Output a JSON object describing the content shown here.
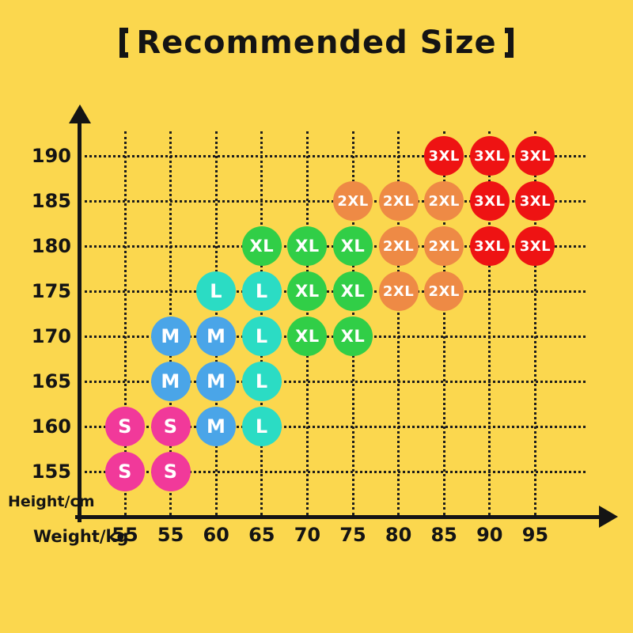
{
  "title_full": "【Recommended Size】",
  "title_text": "Recommended Size",
  "colors": {
    "background": "#FBD74E",
    "axis_and_text": "#141414",
    "grid": "#1C1C1C",
    "bubble_label": "#FFFFFF"
  },
  "chart_data": {
    "type": "scatter",
    "title": "【Recommended Size】",
    "xlabel": "Weight/kg",
    "ylabel": "Height/cm",
    "x_tick_labels": [
      "55",
      "55",
      "60",
      "65",
      "70",
      "75",
      "80",
      "85",
      "90",
      "95"
    ],
    "y_ticks": [
      155,
      160,
      165,
      170,
      175,
      180,
      185,
      190
    ],
    "grid": true,
    "legend": "none",
    "series": [
      {
        "name": "S",
        "color": "#F1399A",
        "points_note": "points are [x_tick_index, height_cm]",
        "points": [
          [
            0,
            155
          ],
          [
            1,
            155
          ],
          [
            0,
            160
          ],
          [
            1,
            160
          ]
        ]
      },
      {
        "name": "M",
        "color": "#4AA5E8",
        "points": [
          [
            2,
            160
          ],
          [
            1,
            165
          ],
          [
            2,
            165
          ],
          [
            1,
            170
          ],
          [
            2,
            170
          ]
        ]
      },
      {
        "name": "L",
        "color": "#2BDCC4",
        "points": [
          [
            3,
            160
          ],
          [
            3,
            165
          ],
          [
            3,
            170
          ],
          [
            2,
            175
          ],
          [
            3,
            175
          ]
        ]
      },
      {
        "name": "XL",
        "color": "#31CE47",
        "points": [
          [
            4,
            170
          ],
          [
            5,
            170
          ],
          [
            4,
            175
          ],
          [
            5,
            175
          ],
          [
            3,
            180
          ],
          [
            4,
            180
          ],
          [
            5,
            180
          ]
        ]
      },
      {
        "name": "2XL",
        "color": "#EE8A45",
        "points": [
          [
            6,
            175
          ],
          [
            7,
            175
          ],
          [
            6,
            180
          ],
          [
            7,
            180
          ],
          [
            5,
            185
          ],
          [
            6,
            185
          ],
          [
            7,
            185
          ]
        ]
      },
      {
        "name": "3XL",
        "color": "#EE1313",
        "points": [
          [
            8,
            180
          ],
          [
            9,
            180
          ],
          [
            8,
            185
          ],
          [
            9,
            185
          ],
          [
            7,
            190
          ],
          [
            8,
            190
          ],
          [
            9,
            190
          ]
        ]
      }
    ]
  }
}
